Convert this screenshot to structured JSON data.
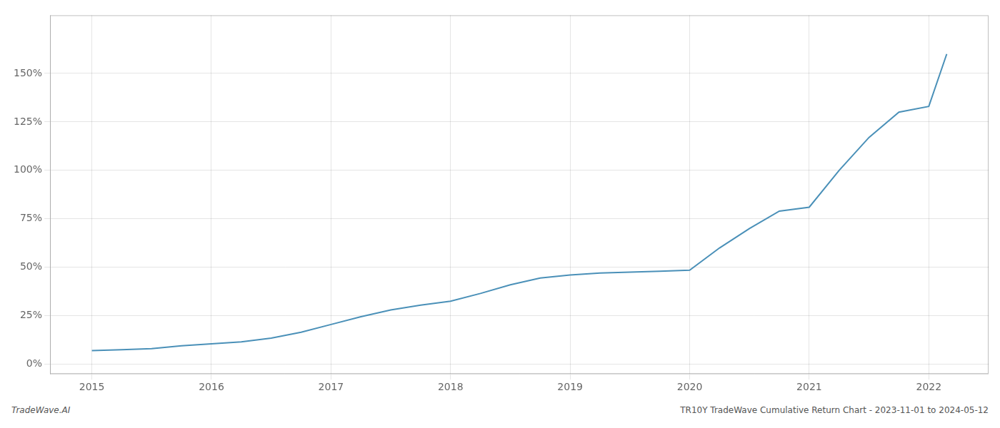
{
  "chart_data": {
    "type": "line",
    "annotations": [
      "TradeWave.AI",
      "TR10Y TradeWave Cumulative Return Chart - 2023-11-01 to 2024-05-12"
    ],
    "x": [
      2015.0,
      2015.25,
      2015.5,
      2015.75,
      2016.0,
      2016.25,
      2016.5,
      2016.75,
      2017.0,
      2017.25,
      2017.5,
      2017.75,
      2018.0,
      2018.25,
      2018.5,
      2018.75,
      2019.0,
      2019.25,
      2019.5,
      2019.75,
      2020.0,
      2020.25,
      2020.5,
      2020.75,
      2021.0,
      2021.25,
      2021.5,
      2021.75,
      2022.0,
      2022.15
    ],
    "values": [
      7.0,
      7.5,
      8.0,
      9.5,
      10.5,
      11.5,
      13.5,
      16.5,
      20.5,
      24.5,
      28.0,
      30.5,
      32.5,
      36.5,
      41.0,
      44.5,
      46.0,
      47.0,
      47.5,
      48.0,
      48.5,
      60.0,
      70.0,
      79.0,
      81.0,
      100.0,
      117.0,
      130.0,
      133.0,
      160.0
    ],
    "color": "#4a90b8",
    "xlim": [
      2014.65,
      2022.5
    ],
    "ylim": [
      -5,
      180
    ],
    "xticks": [
      2015,
      2016,
      2017,
      2018,
      2019,
      2020,
      2021,
      2022
    ],
    "yticks": [
      {
        "value": 0,
        "label": "0%"
      },
      {
        "value": 25,
        "label": "25%"
      },
      {
        "value": 50,
        "label": "50%"
      },
      {
        "value": 75,
        "label": "75%"
      },
      {
        "value": 100,
        "label": "100%"
      },
      {
        "value": 125,
        "label": "125%"
      },
      {
        "value": 150,
        "label": "150%"
      }
    ],
    "grid": true
  }
}
